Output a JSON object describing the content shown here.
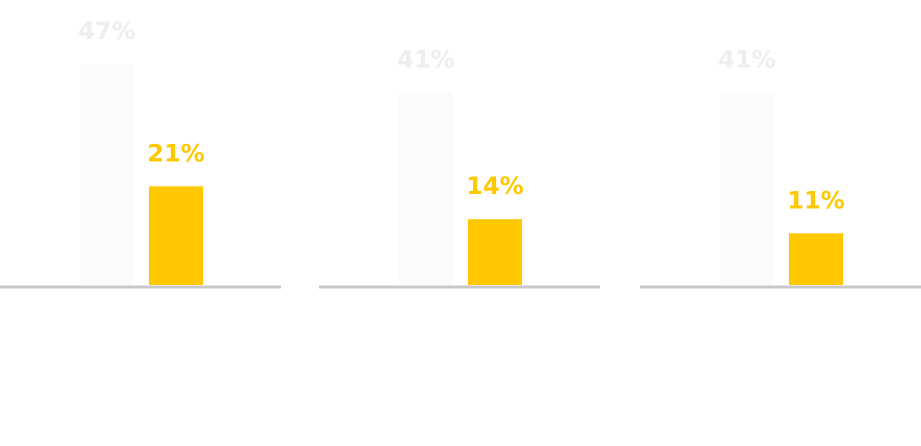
{
  "chart_data": [
    {
      "type": "bar",
      "categories": [
        null,
        null
      ],
      "values": [
        47,
        21
      ],
      "value_labels": [
        "47%",
        "21%"
      ],
      "colors": [
        "#fbfbfb",
        "#ffc800"
      ],
      "label_colors": [
        "#eeeeee",
        "#ffc800"
      ]
    },
    {
      "type": "bar",
      "categories": [
        null,
        null
      ],
      "values": [
        41,
        14
      ],
      "value_labels": [
        "41%",
        "14%"
      ],
      "colors": [
        "#fbfbfb",
        "#ffc800"
      ],
      "label_colors": [
        "#eeeeee",
        "#ffc800"
      ]
    },
    {
      "type": "bar",
      "categories": [
        null,
        null
      ],
      "values": [
        41,
        11
      ],
      "value_labels": [
        "41%",
        "11%"
      ],
      "colors": [
        "#fbfbfb",
        "#ffc800"
      ],
      "label_colors": [
        "#eeeeee",
        "#ffc800"
      ]
    }
  ]
}
